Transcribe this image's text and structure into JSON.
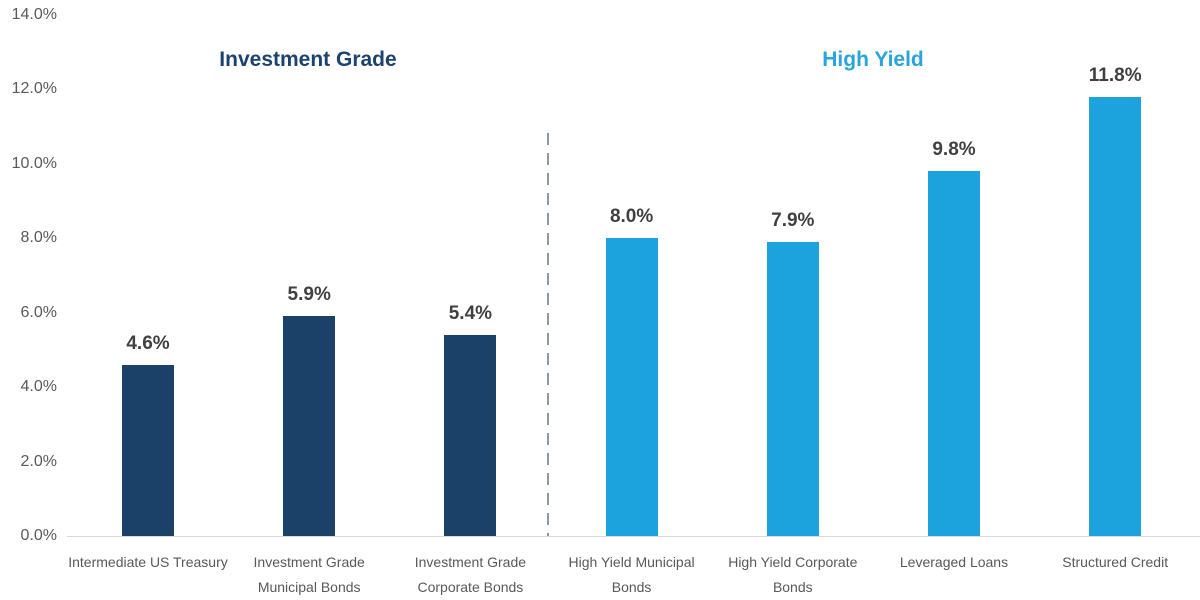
{
  "chart_data": {
    "type": "bar",
    "title": "",
    "xlabel": "",
    "ylabel": "",
    "ylim": [
      0,
      14
    ],
    "grid": false,
    "legend": "none",
    "yticks": [
      {
        "value": 0,
        "label": "0.0%"
      },
      {
        "value": 2,
        "label": "2.0%"
      },
      {
        "value": 4,
        "label": "4.0%"
      },
      {
        "value": 6,
        "label": "6.0%"
      },
      {
        "value": 8,
        "label": "8.0%"
      },
      {
        "value": 10,
        "label": "10.0%"
      },
      {
        "value": 12,
        "label": "12.0%"
      },
      {
        "value": 14,
        "label": "14.0%"
      }
    ],
    "section_titles": [
      {
        "label": "Investment Grade",
        "color": "#1C4370"
      },
      {
        "label": "High Yield",
        "color": "#29A4DC"
      }
    ],
    "series": [
      {
        "name": "Investment Grade",
        "color": "#1B4169",
        "items": [
          {
            "category": "Intermediate US Treasury",
            "value": 4.6,
            "label": "4.6%"
          },
          {
            "category": "Investment Grade Municipal Bonds",
            "value": 5.9,
            "label": "5.9%"
          },
          {
            "category": "Investment Grade Corporate Bonds",
            "value": 5.4,
            "label": "5.4%"
          }
        ]
      },
      {
        "name": "High Yield",
        "color": "#1CA2DC",
        "items": [
          {
            "category": "High Yield Municipal Bonds",
            "value": 8.0,
            "label": "8.0%"
          },
          {
            "category": "High Yield Corporate Bonds",
            "value": 7.9,
            "label": "7.9%"
          },
          {
            "category": "Leveraged Loans",
            "value": 9.8,
            "label": "9.8%"
          },
          {
            "category": "Structured Credit",
            "value": 11.8,
            "label": "11.8%"
          }
        ]
      }
    ],
    "divider": {
      "style": "dashed",
      "color": "#8A99AB"
    },
    "colors": {
      "background": "#FFFFFF",
      "axis_line": "#D9D9D9",
      "tick_label": "#595959",
      "category_label": "#595959",
      "value_label": "#404040"
    }
  }
}
